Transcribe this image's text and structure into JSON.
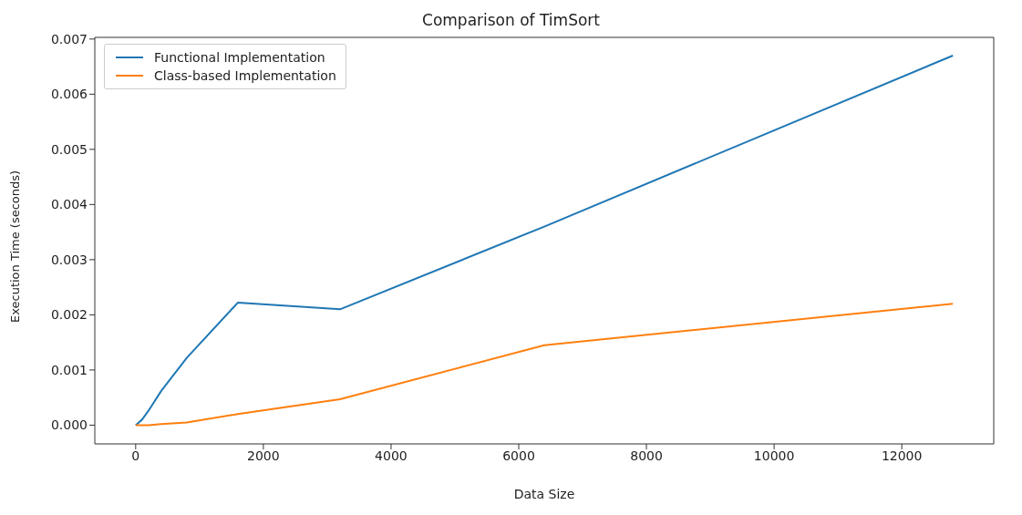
{
  "chart_data": {
    "type": "line",
    "title": "Comparison of TimSort",
    "xlabel": "Data Size",
    "ylabel": "Execution Time (seconds)",
    "x": [
      0,
      100,
      200,
      400,
      800,
      1600,
      3200,
      6400,
      12800
    ],
    "series": [
      {
        "name": "Functional Implementation",
        "color": "#1f77b4",
        "values": [
          0,
          0.0001,
          0.00026,
          0.00062,
          0.00122,
          0.00222,
          0.0021,
          0.0036,
          0.0067
        ]
      },
      {
        "name": "Class-based Implementation",
        "color": "#ff7f0e",
        "values": [
          0,
          0,
          0,
          2e-05,
          5e-05,
          0.0002,
          0.00047,
          0.00145,
          0.0022
        ]
      }
    ],
    "xlim": [
      -640,
      13440
    ],
    "xticks": [
      0,
      2000,
      4000,
      6000,
      8000,
      10000,
      12000
    ],
    "ylim": [
      -0.00034,
      0.00703
    ],
    "yticks": [
      {
        "value": 0,
        "label": "0.000"
      },
      {
        "value": 0.001,
        "label": "0.001"
      },
      {
        "value": 0.002,
        "label": "0.002"
      },
      {
        "value": 0.003,
        "label": "0.003"
      },
      {
        "value": 0.004,
        "label": "0.004"
      },
      {
        "value": 0.005,
        "label": "0.005"
      },
      {
        "value": 0.006,
        "label": "0.006"
      },
      {
        "value": 0.007,
        "label": "0.007"
      }
    ],
    "legend": "top left",
    "grid": false,
    "marker": "none",
    "line_style": "solid"
  }
}
